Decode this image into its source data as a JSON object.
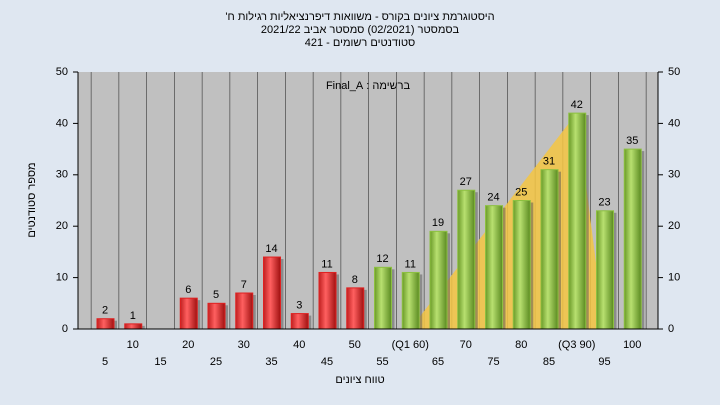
{
  "chart_data": {
    "type": "bar",
    "title": [
      "היסטוגרמת ציונים בקורס - משוואות דיפרנציאליות רגילות ח'",
      "בסמסטר (02/2021) סמסטר אביב 2021/22",
      "סטודנטים רשומים - 421"
    ],
    "annotation": "ברשימה : Final_A",
    "ylabel": "מספר סטודנטים",
    "xlabel": "טווח ציונים",
    "categories": [
      "5",
      "10",
      "15",
      "20",
      "25",
      "30",
      "35",
      "40",
      "45",
      "50",
      "55",
      "(Q1 60)",
      "65",
      "70",
      "75",
      "80",
      "85",
      "(Q3 90)",
      "95",
      "100"
    ],
    "values": [
      2,
      1,
      0,
      6,
      5,
      7,
      14,
      3,
      11,
      8,
      12,
      11,
      19,
      27,
      24,
      25,
      31,
      42,
      23,
      35
    ],
    "colors": [
      "#e02020",
      "#e02020",
      "#e02020",
      "#e02020",
      "#e02020",
      "#e02020",
      "#e02020",
      "#e02020",
      "#e02020",
      "#e02020",
      "#8cc040",
      "#8cc040",
      "#8cc040",
      "#8cc040",
      "#8cc040",
      "#8cc040",
      "#8cc040",
      "#8cc040",
      "#8cc040",
      "#8cc040"
    ],
    "ylim": [
      0,
      50
    ],
    "yticks": [
      0,
      10,
      20,
      30,
      40,
      50
    ],
    "grid": true
  }
}
